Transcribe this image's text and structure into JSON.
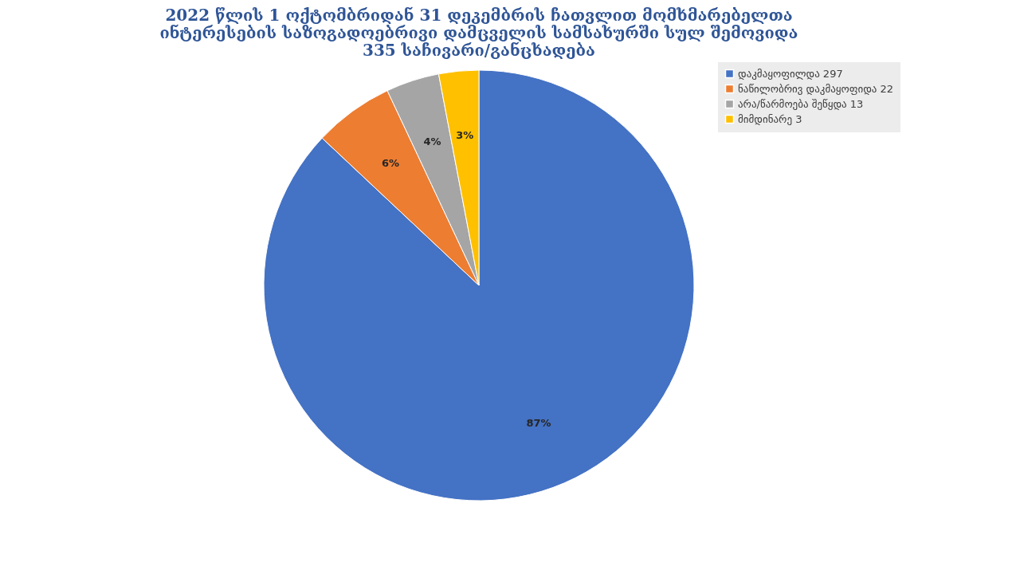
{
  "chart_data": {
    "type": "pie",
    "title": "2022 წლის 1 ოქტომბრიდან 31 დეკემბრის ჩათვლით მომხმარებელთა ინტერესების საზოგადოებრივი დამცველის სამსახურში სულ შემოვიდა 335 საჩივარი/განცხადება",
    "categories": [
      "დაკმაყოფილდა 297",
      "ნაწილობრივ დაკმაყოფიდა 22",
      "არა/წარმოება შეწყდა 13",
      "მიმდინარე  3"
    ],
    "values": [
      87,
      6,
      4,
      3
    ],
    "colors": [
      "#4472c4",
      "#ed7d31",
      "#a5a5a5",
      "#ffc000"
    ],
    "value_labels": [
      "87%",
      "6%",
      "4%",
      "3%"
    ],
    "legend": "right"
  }
}
